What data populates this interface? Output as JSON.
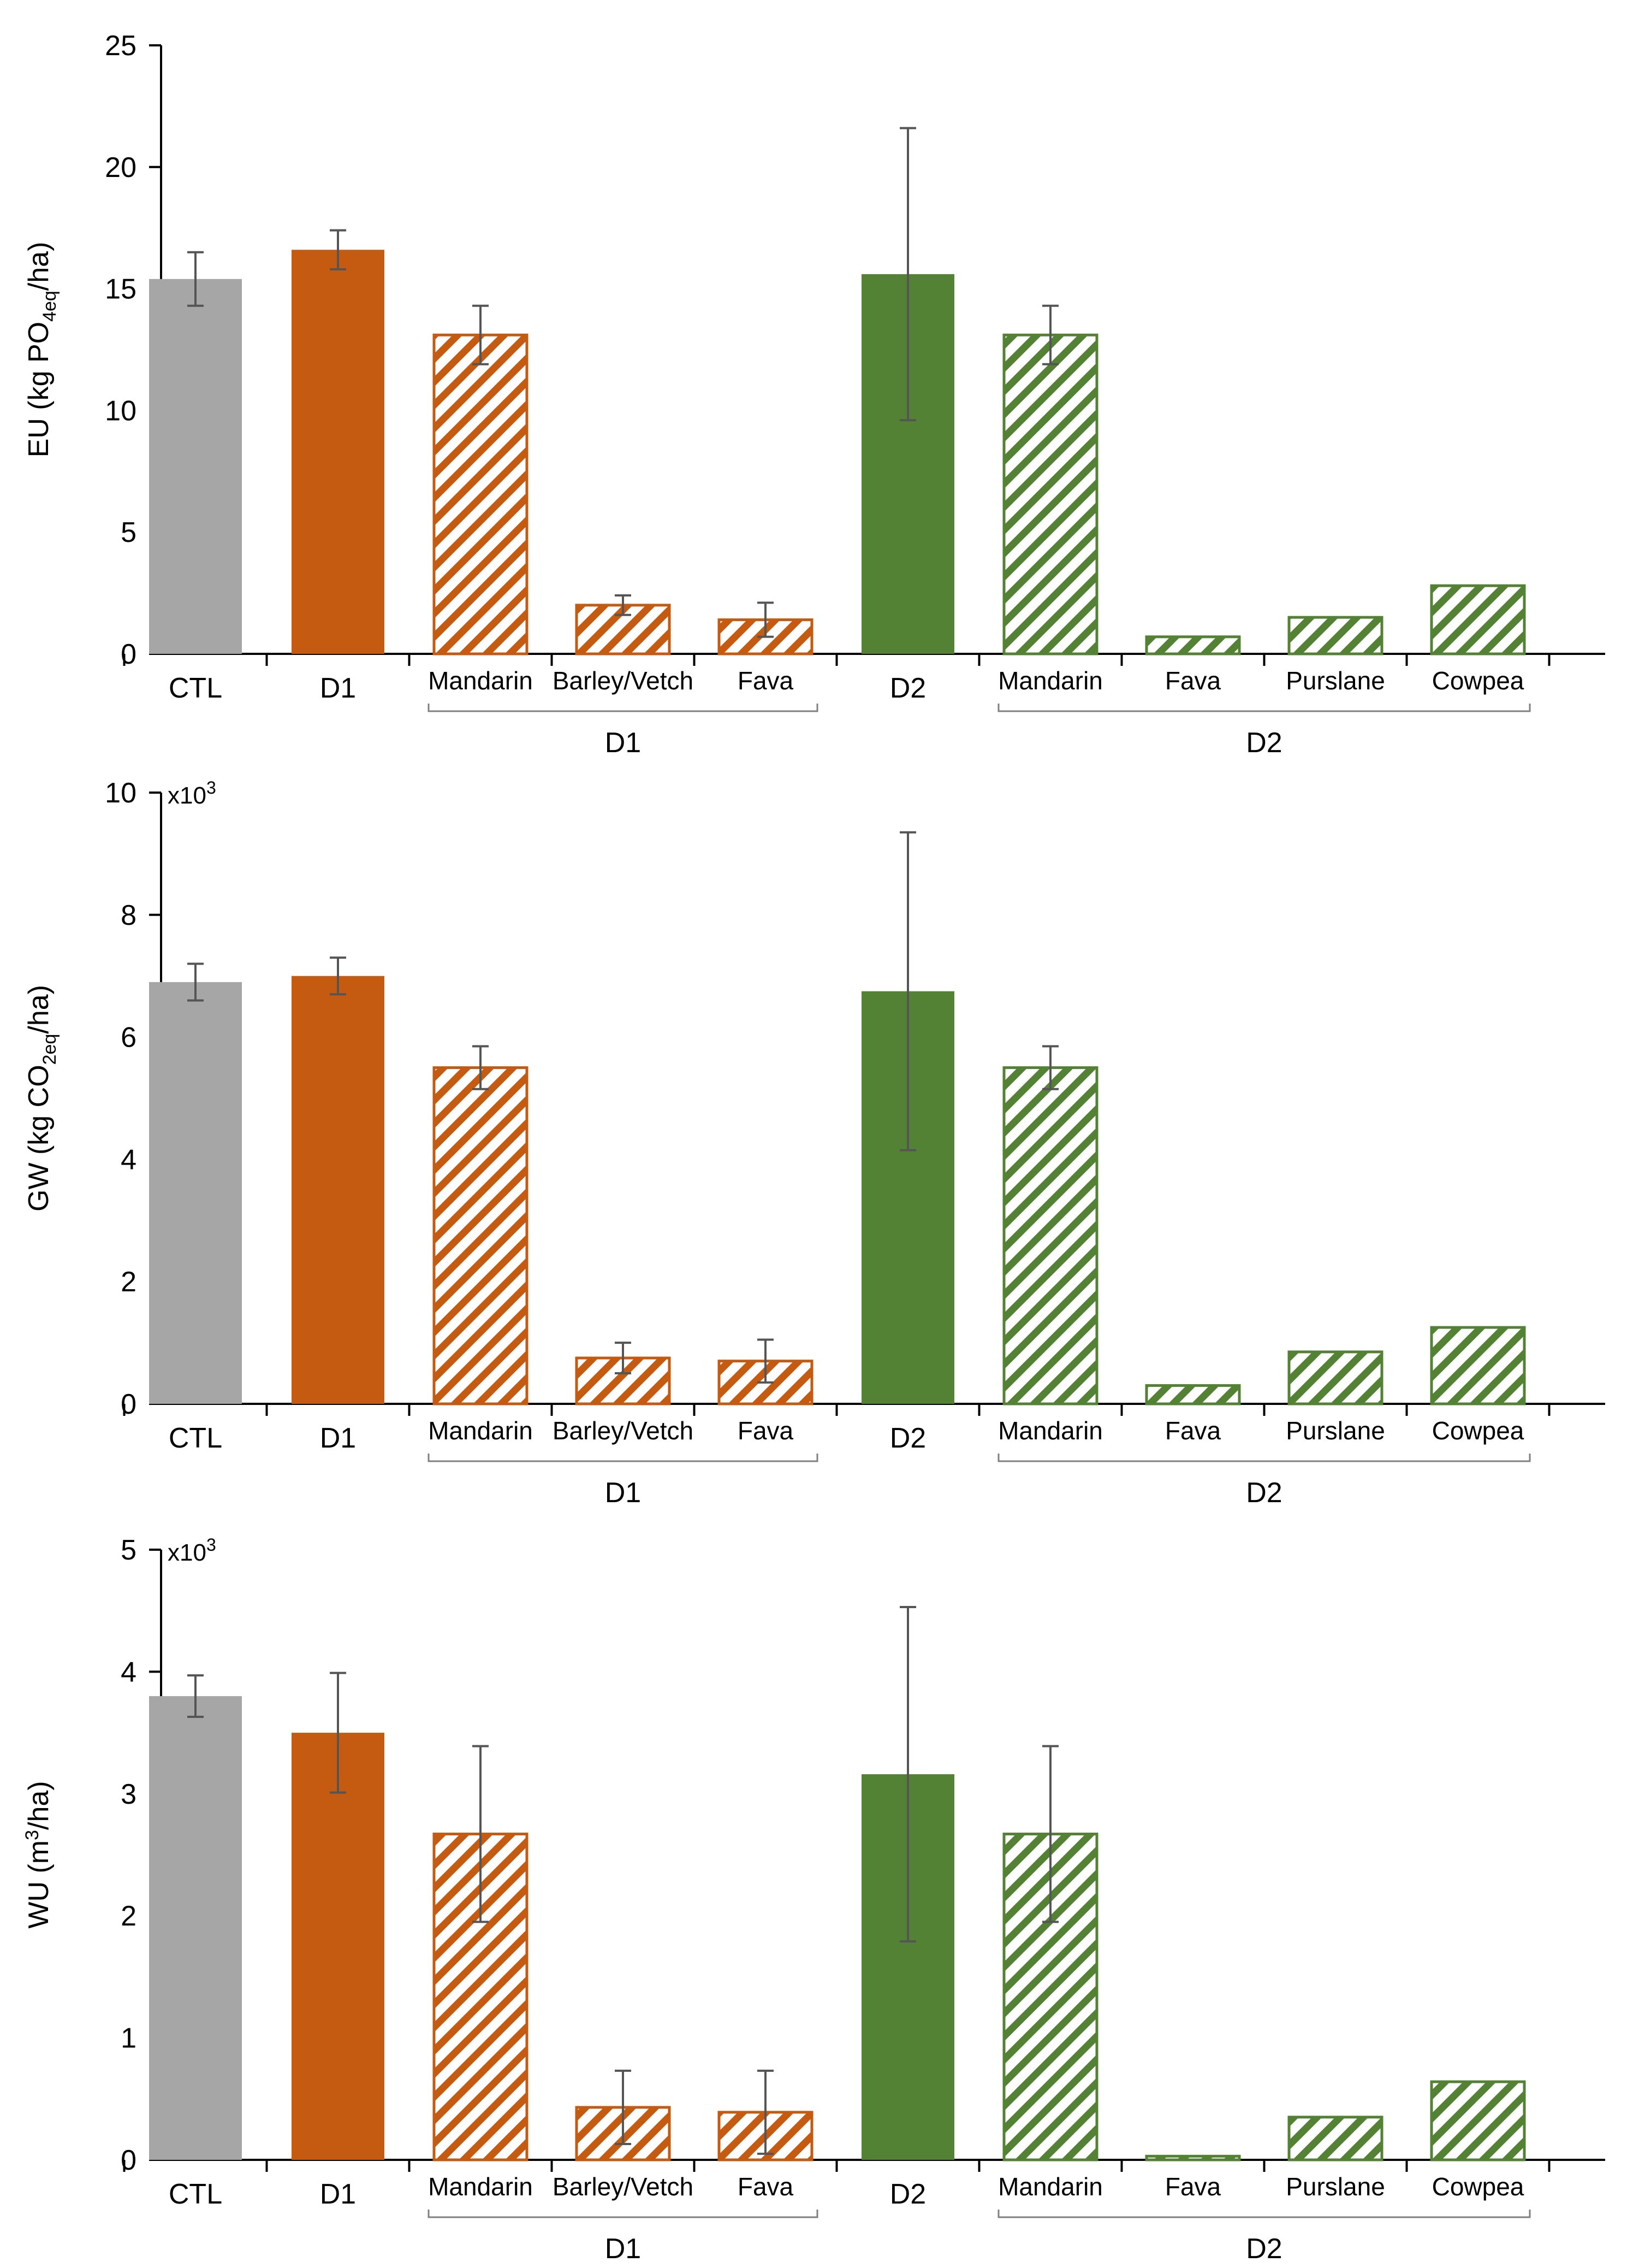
{
  "colors": {
    "control": "#a6a6a6",
    "d1": "#c55a11",
    "d2": "#548235",
    "axis": "#000000",
    "error": "#555555",
    "bracket": "#808080"
  },
  "chart_data": [
    {
      "type": "bar",
      "id": "eu",
      "ylabel_main": "EU (kg PO",
      "ylabel_sub": "4eq",
      "ylabel_tail": "/ha)",
      "multiplier_base": "",
      "multiplier_exp": "",
      "ylim": [
        0,
        25
      ],
      "yticks": [
        0,
        5,
        10,
        15,
        20,
        25
      ],
      "categories": [
        "CTL",
        "D1",
        "Mandarin",
        "Barley/Vetch",
        "Fava",
        "D2",
        "Mandarin",
        "Fava",
        "Purslane",
        "Cowpea"
      ],
      "styles": [
        "control",
        "d1",
        "d1-hatch",
        "d1-hatch",
        "d1-hatch",
        "d2",
        "d2-hatch",
        "d2-hatch",
        "d2-hatch",
        "d2-hatch"
      ],
      "values": [
        15.4,
        16.6,
        13.1,
        2.0,
        1.4,
        15.6,
        13.1,
        0.7,
        1.5,
        2.8
      ],
      "errors": [
        1.1,
        0.8,
        1.2,
        0.4,
        0.7,
        6.0,
        1.2,
        null,
        null,
        null
      ],
      "groups": [
        {
          "label": "D1",
          "from": 2,
          "to": 4
        },
        {
          "label": "D2",
          "from": 6,
          "to": 9
        }
      ]
    },
    {
      "type": "bar",
      "id": "gw",
      "ylabel_main": "GW (kg CO",
      "ylabel_sub": "2eq",
      "ylabel_tail": "/ha)",
      "multiplier_base": "x10",
      "multiplier_exp": "3",
      "ylim": [
        0,
        10
      ],
      "yticks": [
        0,
        2,
        4,
        6,
        8,
        10
      ],
      "categories": [
        "CTL",
        "D1",
        "Mandarin",
        "Barley/Vetch",
        "Fava",
        "D2",
        "Mandarin",
        "Fava",
        "Purslane",
        "Cowpea"
      ],
      "styles": [
        "control",
        "d1",
        "d1-hatch",
        "d1-hatch",
        "d1-hatch",
        "d2",
        "d2-hatch",
        "d2-hatch",
        "d2-hatch",
        "d2-hatch"
      ],
      "values": [
        6.9,
        7.0,
        5.5,
        0.75,
        0.7,
        6.75,
        5.5,
        0.3,
        0.85,
        1.25
      ],
      "errors": [
        0.3,
        0.3,
        0.35,
        0.25,
        0.35,
        2.6,
        0.35,
        null,
        null,
        null
      ],
      "groups": [
        {
          "label": "D1",
          "from": 2,
          "to": 4
        },
        {
          "label": "D2",
          "from": 6,
          "to": 9
        }
      ]
    },
    {
      "type": "bar",
      "id": "wu",
      "ylabel_main": "WU (m",
      "ylabel_sup": "3",
      "ylabel_tail": "/ha)",
      "multiplier_base": "x10",
      "multiplier_exp": "3",
      "ylim": [
        0,
        5
      ],
      "yticks": [
        0,
        1,
        2,
        3,
        4,
        5
      ],
      "categories": [
        "CTL",
        "D1",
        "Mandarin",
        "Barley/Vetch",
        "Fava",
        "D2",
        "Mandarin",
        "Fava",
        "Purslane",
        "Cowpea"
      ],
      "styles": [
        "control",
        "d1",
        "d1-hatch",
        "d1-hatch",
        "d1-hatch",
        "d2",
        "d2-hatch",
        "d2-hatch",
        "d2-hatch",
        "d2-hatch"
      ],
      "values": [
        3.8,
        3.5,
        2.67,
        0.43,
        0.39,
        3.16,
        2.67,
        0.03,
        0.35,
        0.64
      ],
      "errors": [
        0.17,
        0.49,
        0.72,
        0.3,
        0.34,
        1.37,
        0.72,
        null,
        null,
        null
      ],
      "groups": [
        {
          "label": "D1",
          "from": 2,
          "to": 4
        },
        {
          "label": "D2",
          "from": 6,
          "to": 9
        }
      ]
    }
  ]
}
